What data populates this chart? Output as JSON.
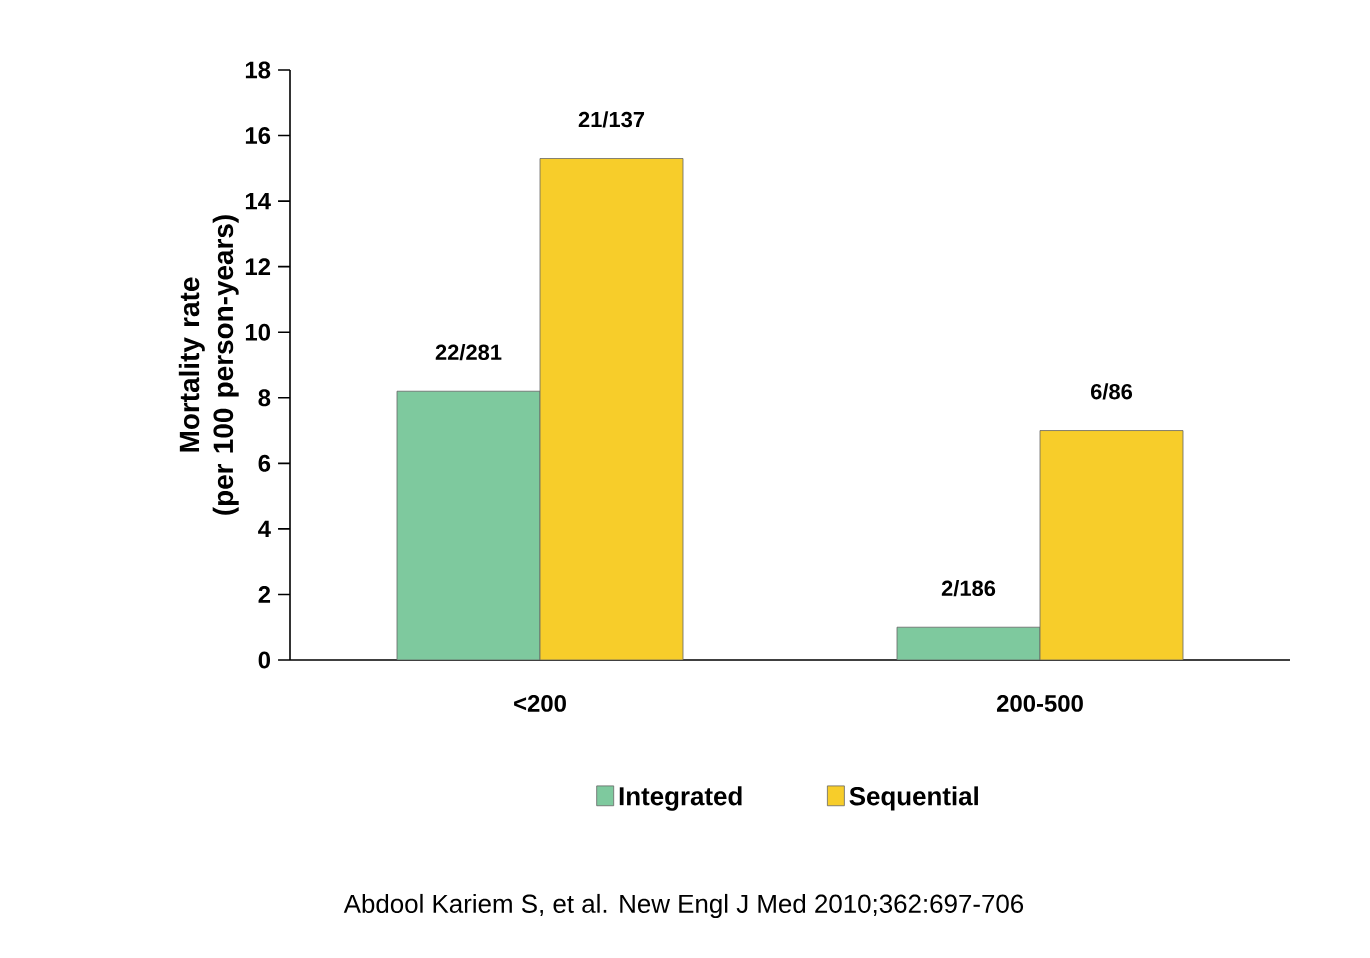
{
  "chart_data": {
    "type": "bar",
    "ylabel": "Mortality rate\n(per 100 person-years)",
    "categories": [
      "<200",
      "200-500"
    ],
    "series": [
      {
        "name": "Integrated",
        "color": "#7ec99e",
        "values": [
          8.2,
          1.0
        ],
        "value_labels": [
          "22/281",
          "2/186"
        ]
      },
      {
        "name": "Sequential",
        "color": "#f7cd2a",
        "values": [
          15.3,
          7.0
        ],
        "value_labels": [
          "21/137",
          "6/86"
        ]
      }
    ],
    "ylim": [
      0,
      18
    ],
    "yticks": [
      0,
      2,
      4,
      6,
      8,
      10,
      12,
      14,
      16,
      18
    ],
    "grid": false,
    "legend": "bottom",
    "annotations": [
      "Abdool Kariem S, et al. New Engl J Med 2010;362:697-706"
    ]
  }
}
